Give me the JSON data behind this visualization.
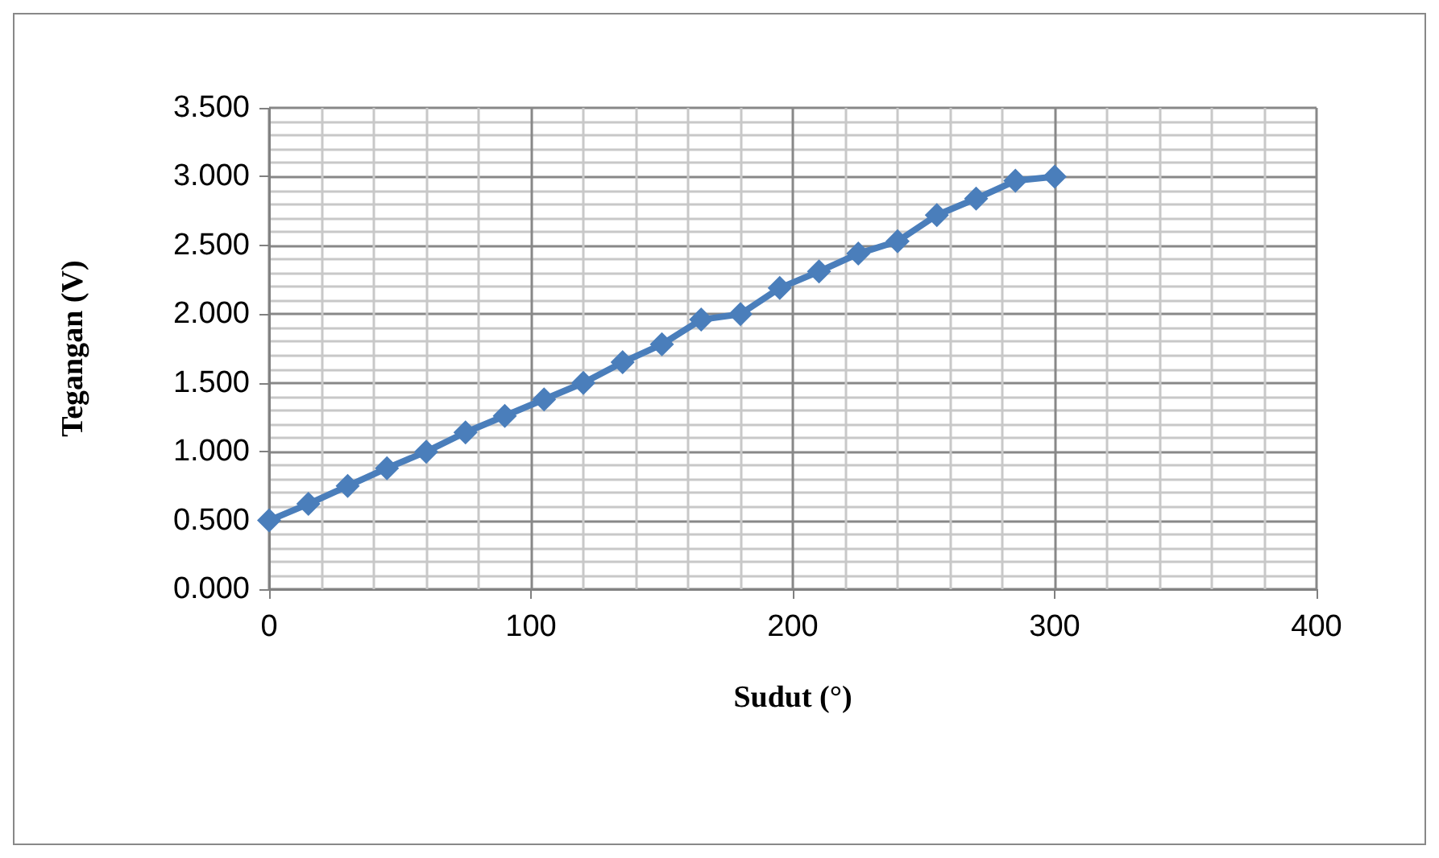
{
  "chart_data": {
    "type": "line",
    "xlabel": "Sudut (°)",
    "ylabel": "Tegangan (V)",
    "x": [
      0,
      15,
      30,
      45,
      60,
      75,
      90,
      105,
      120,
      135,
      150,
      165,
      180,
      195,
      210,
      225,
      240,
      255,
      270,
      285,
      300
    ],
    "series": [
      {
        "color": "#4a7ebb",
        "values": [
          0.5,
          0.62,
          0.75,
          0.88,
          1.0,
          1.14,
          1.26,
          1.38,
          1.5,
          1.65,
          1.78,
          1.96,
          2.0,
          2.19,
          2.31,
          2.44,
          2.53,
          2.72,
          2.84,
          2.97,
          3.0
        ]
      }
    ],
    "xlim": [
      0,
      400
    ],
    "xticks": [
      0,
      100,
      200,
      300,
      400
    ],
    "ylim": [
      0,
      3.5
    ],
    "yticks": [
      {
        "value": 0,
        "label": "0.000"
      },
      {
        "value": 0.5,
        "label": "0.500"
      },
      {
        "value": 1,
        "label": "1.000"
      },
      {
        "value": 1.5,
        "label": "1.500"
      },
      {
        "value": 2,
        "label": "2.000"
      },
      {
        "value": 2.5,
        "label": "2.500"
      },
      {
        "value": 3,
        "label": "3.000"
      },
      {
        "value": 3.5,
        "label": "3.500"
      }
    ],
    "grid": true,
    "marker": "diamond"
  }
}
